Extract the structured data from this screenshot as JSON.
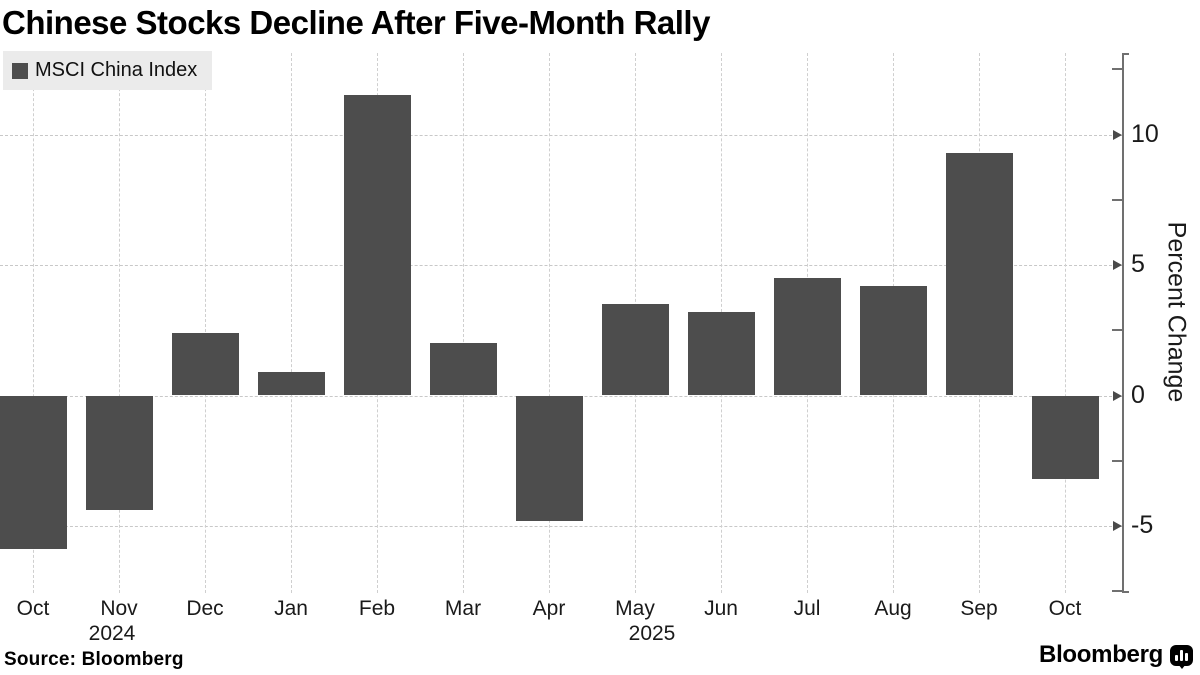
{
  "title": "Chinese Stocks Decline After Five-Month Rally",
  "legend": {
    "label": "MSCI China Index"
  },
  "y_axis": {
    "label": "Percent Change",
    "ticks": [
      10,
      5,
      0,
      -5
    ],
    "minor_ticks": [
      12.5,
      7.5,
      2.5,
      -2.5,
      -7.5
    ]
  },
  "x_axis": {
    "years": [
      {
        "label": "2024"
      },
      {
        "label": "2025"
      }
    ]
  },
  "source": "Source:  Bloomberg",
  "logo": {
    "text": "Bloomberg",
    "icon": "bloomberg-chart-bubble-icon"
  },
  "colors": {
    "bar": "#4d4d4d",
    "legend_bg": "#ebebeb",
    "gridline": "#c8c8c8",
    "axis": "#707070",
    "text": "#1a1a1a",
    "background": "#ffffff"
  },
  "chart_data": {
    "type": "bar",
    "title": "Chinese Stocks Decline After Five-Month Rally",
    "series_name": "MSCI China Index",
    "categories": [
      "Oct",
      "Nov",
      "Dec",
      "Jan",
      "Feb",
      "Mar",
      "Apr",
      "May",
      "Jun",
      "Jul",
      "Aug",
      "Sep",
      "Oct"
    ],
    "category_years": [
      "2024",
      "2024",
      "2024",
      "2025",
      "2025",
      "2025",
      "2025",
      "2025",
      "2025",
      "2025",
      "2025",
      "2025",
      "2025"
    ],
    "values": [
      -5.9,
      -4.4,
      2.4,
      0.9,
      11.5,
      2.0,
      -4.8,
      3.5,
      3.2,
      4.5,
      4.2,
      9.3,
      -3.2
    ],
    "xlabel": "",
    "ylabel": "Percent Change",
    "ylim": [
      -7.6,
      13.1
    ],
    "yticks": [
      10,
      5,
      0,
      -5
    ],
    "grid": true,
    "legend_position": "top-left",
    "bar_color": "#4d4d4d",
    "unit": "percent"
  }
}
